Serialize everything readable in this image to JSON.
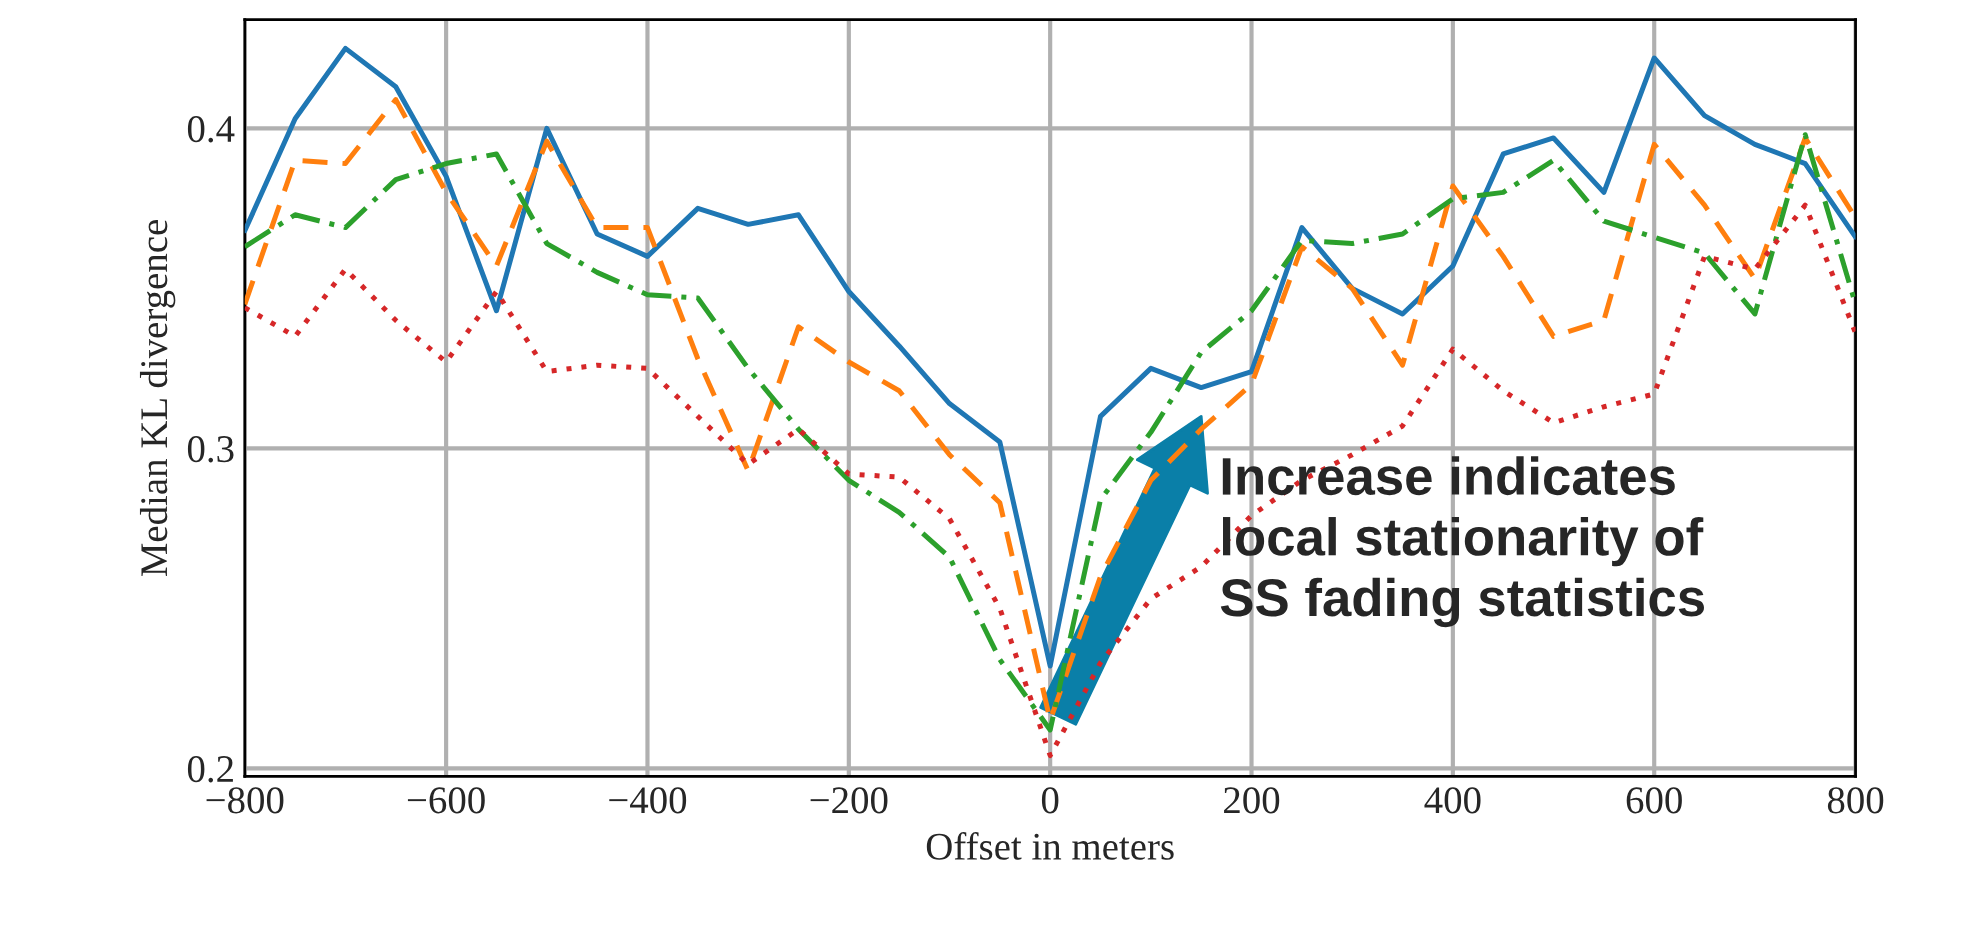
{
  "chart_data": {
    "type": "line",
    "xlabel": "Offset in meters",
    "ylabel": "Median KL divergence",
    "x": [
      -800,
      -750,
      -700,
      -650,
      -600,
      -550,
      -500,
      -450,
      -400,
      -350,
      -300,
      -250,
      -200,
      -150,
      -100,
      -50,
      0,
      50,
      100,
      150,
      200,
      250,
      300,
      350,
      400,
      450,
      500,
      550,
      600,
      650,
      700,
      750,
      800
    ],
    "series": [
      {
        "color": "#1f77b4",
        "line_style": "solid",
        "values": [
          0.368,
          0.403,
          0.425,
          0.413,
          0.385,
          0.343,
          0.4,
          0.367,
          0.36,
          0.375,
          0.37,
          0.373,
          0.349,
          0.332,
          0.314,
          0.302,
          0.232,
          0.31,
          0.325,
          0.319,
          0.324,
          0.369,
          0.35,
          0.342,
          0.357,
          0.392,
          0.397,
          0.38,
          0.422,
          0.404,
          0.395,
          0.389,
          0.366
        ]
      },
      {
        "color": "#ff7f0e",
        "line_style": "dashed",
        "values": [
          0.345,
          0.39,
          0.389,
          0.409,
          0.38,
          0.357,
          0.396,
          0.369,
          0.369,
          0.328,
          0.293,
          0.338,
          0.327,
          0.318,
          0.298,
          0.283,
          0.215,
          0.26,
          0.29,
          0.306,
          0.32,
          0.363,
          0.35,
          0.326,
          0.382,
          0.36,
          0.335,
          0.34,
          0.395,
          0.376,
          0.353,
          0.397,
          0.372
        ]
      },
      {
        "color": "#2ca02c",
        "line_style": "dashdot",
        "values": [
          0.363,
          0.373,
          0.369,
          0.384,
          0.389,
          0.392,
          0.364,
          0.355,
          0.348,
          0.347,
          0.325,
          0.306,
          0.29,
          0.28,
          0.266,
          0.234,
          0.212,
          0.284,
          0.305,
          0.33,
          0.343,
          0.365,
          0.364,
          0.367,
          0.378,
          0.38,
          0.39,
          0.371,
          0.366,
          0.361,
          0.342,
          0.398,
          0.345
        ]
      },
      {
        "color": "#d62728",
        "line_style": "dotted",
        "values": [
          0.344,
          0.335,
          0.356,
          0.34,
          0.327,
          0.349,
          0.324,
          0.326,
          0.325,
          0.31,
          0.295,
          0.306,
          0.292,
          0.291,
          0.278,
          0.25,
          0.204,
          0.233,
          0.253,
          0.263,
          0.279,
          0.29,
          0.298,
          0.307,
          0.331,
          0.318,
          0.308,
          0.313,
          0.317,
          0.36,
          0.356,
          0.376,
          0.336
        ]
      }
    ],
    "xlim": [
      -800,
      800
    ],
    "xticks": [
      -800,
      -600,
      -400,
      -200,
      0,
      200,
      400,
      600,
      800
    ],
    "ylim": [
      0.1975,
      0.434
    ],
    "yticks": [
      0.2,
      0.3,
      0.4
    ],
    "grid": true,
    "marker": "none",
    "annotations": [
      {
        "text": "Increase indicates\nlocal stationarity of\nSS fading statistics",
        "x": 150,
        "y": 0.31
      }
    ]
  }
}
